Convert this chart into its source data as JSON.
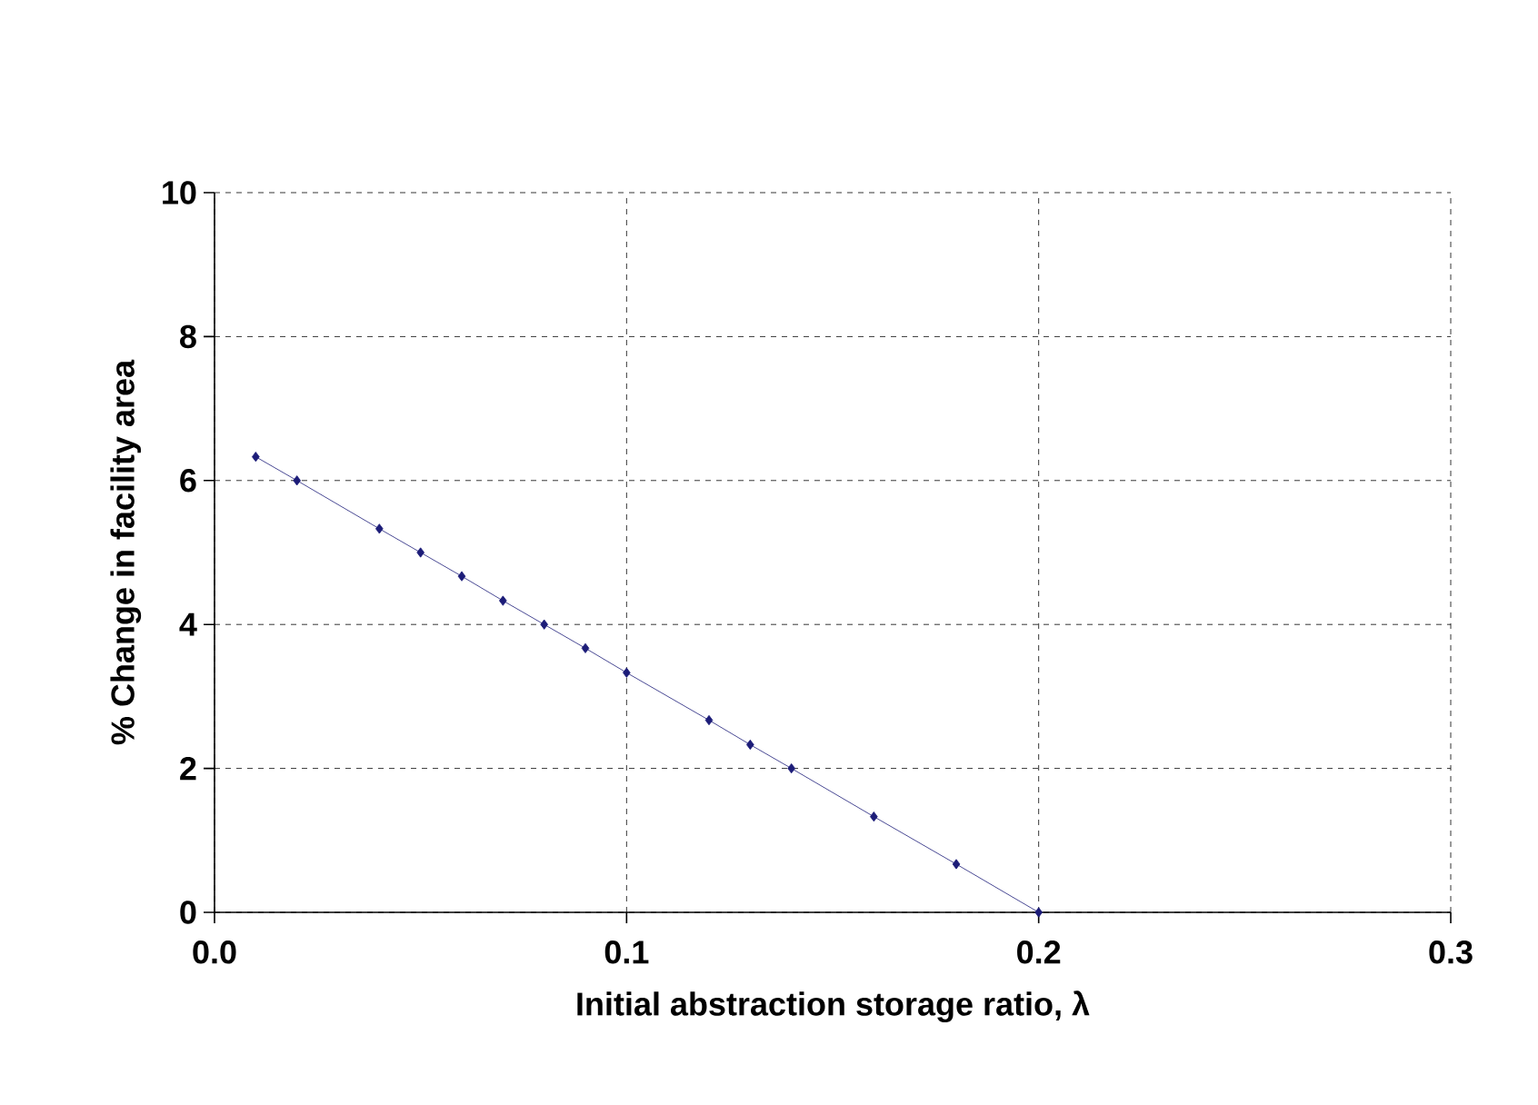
{
  "chart_data": {
    "type": "line",
    "xlabel": "Initial abstraction storage ratio, λ",
    "ylabel": "% Change in facility area",
    "x": [
      0.01,
      0.02,
      0.04,
      0.05,
      0.06,
      0.07,
      0.08,
      0.09,
      0.1,
      0.12,
      0.13,
      0.14,
      0.16,
      0.18,
      0.2
    ],
    "series": [
      {
        "color": "#1c1c78",
        "values": [
          6.33,
          6.0,
          5.33,
          5.0,
          4.67,
          4.33,
          4.0,
          3.67,
          3.33,
          2.67,
          2.33,
          2.0,
          1.33,
          0.67,
          0.0
        ]
      }
    ],
    "xlim": [
      0,
      0.3
    ],
    "xticks": [
      {
        "value": 0,
        "label": "0.0"
      },
      {
        "value": 0.1,
        "label": "0.1"
      },
      {
        "value": 0.2,
        "label": "0.2"
      },
      {
        "value": 0.3,
        "label": "0.3"
      }
    ],
    "ylim": [
      0,
      10
    ],
    "yticks": [
      0,
      2,
      4,
      6,
      8,
      10
    ],
    "grid": true,
    "marker": "diamond",
    "line_style": "solid"
  }
}
